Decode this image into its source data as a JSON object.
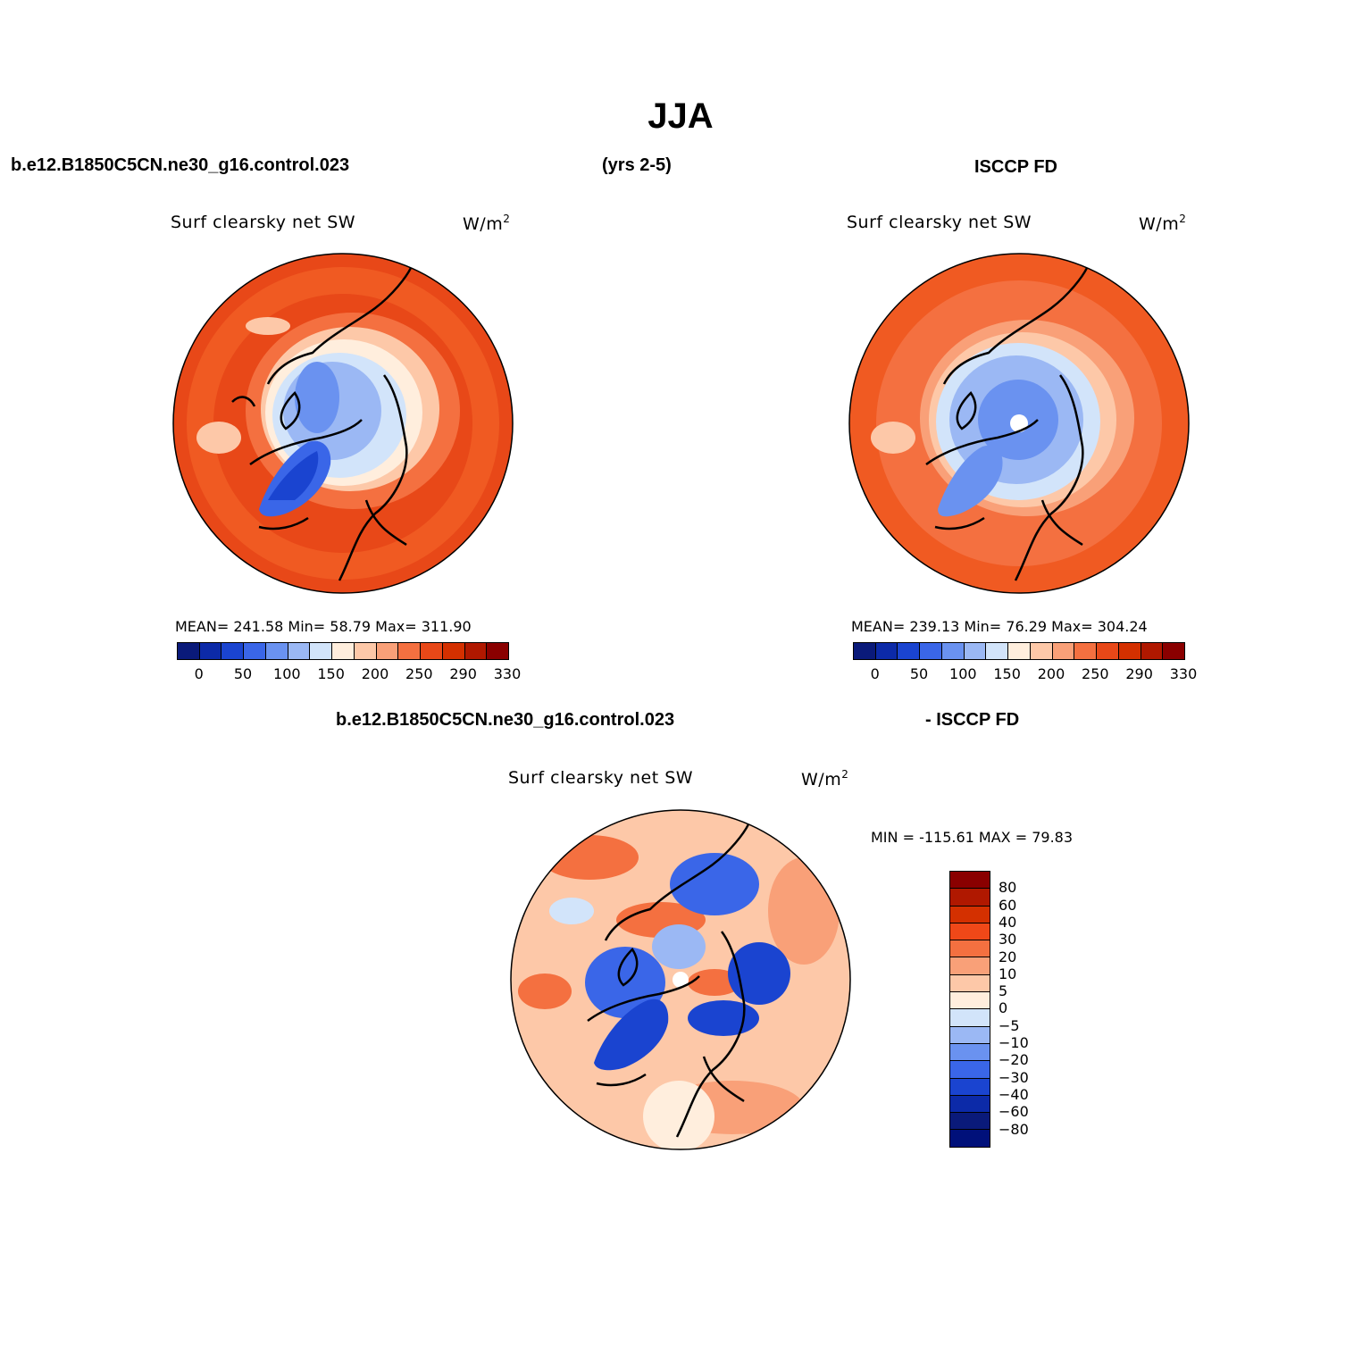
{
  "title": "JJA",
  "header": {
    "case_name": "b.e12.B1850C5CN.ne30_g16.control.023",
    "years": "(yrs 2-5)",
    "obs_name": "ISCCP FD"
  },
  "panels": {
    "left": {
      "variable": "Surf clearsky net SW",
      "units_base": "W/m",
      "units_exp": "2",
      "stats": "MEAN= 241.58   Min=  58.79   Max= 311.90"
    },
    "right": {
      "variable": "Surf clearsky net SW",
      "units_base": "W/m",
      "units_exp": "2",
      "stats": "MEAN= 239.13   Min=  76.29   Max= 304.24"
    },
    "diff": {
      "header_left": "b.e12.B1850C5CN.ne30_g16.control.023",
      "header_right": "- ISCCP FD",
      "variable": "Surf clearsky net SW",
      "units_base": "W/m",
      "units_exp": "2",
      "stats": "MIN = -115.61 MAX =   79.83"
    }
  },
  "colorbar_abs": {
    "colors": [
      "#0a1a7a",
      "#0c2aa8",
      "#1a44d0",
      "#3a66e8",
      "#6a92f0",
      "#9bb8f4",
      "#d2e4fa",
      "#ffeedd",
      "#fdc8a8",
      "#f9a078",
      "#f47040",
      "#e84818",
      "#d43000",
      "#b01800",
      "#8a0000"
    ],
    "labels": [
      "0",
      "50",
      "100",
      "150",
      "200",
      "250",
      "290",
      "330"
    ]
  },
  "colorbar_diff": {
    "colors": [
      "#8a0000",
      "#b01800",
      "#d43000",
      "#f04818",
      "#f47040",
      "#f9a078",
      "#fdc8a8",
      "#ffeedd",
      "#d2e4fa",
      "#9bb8f4",
      "#6a92f0",
      "#3a66e8",
      "#1a44d0",
      "#0c2aa8",
      "#0a1a7a",
      "#00107a"
    ],
    "labels": [
      "80",
      "60",
      "40",
      "30",
      "20",
      "10",
      "5",
      "0",
      "-5",
      "-10",
      "-20",
      "-30",
      "-40",
      "-60",
      "-80"
    ]
  }
}
